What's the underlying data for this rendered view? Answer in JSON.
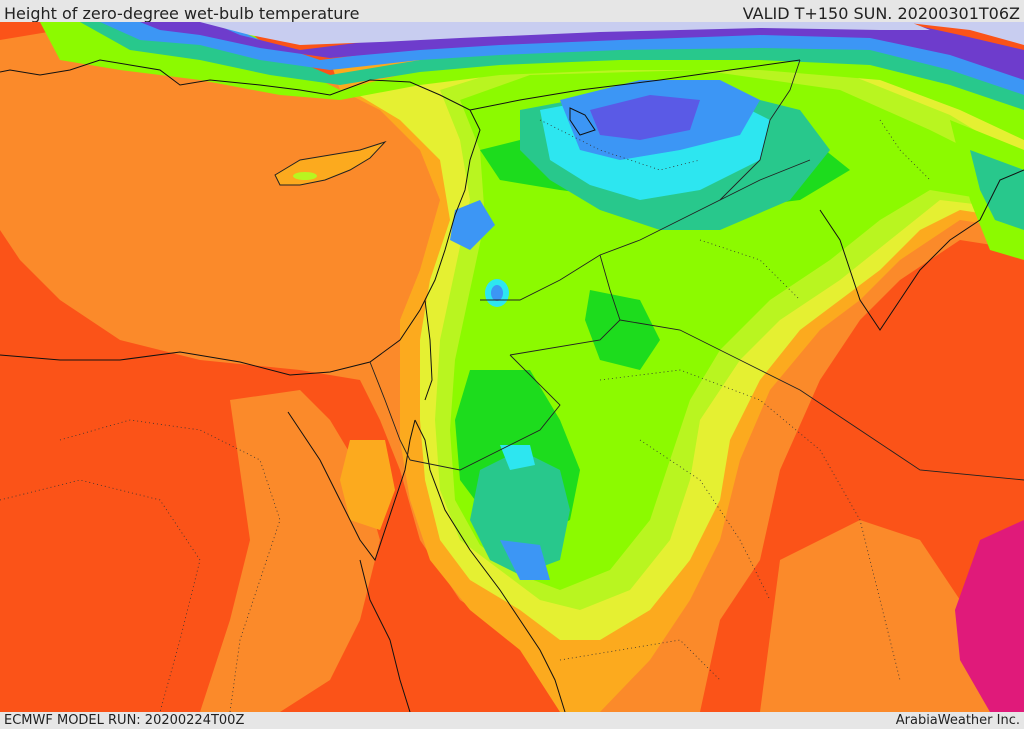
{
  "header": {
    "title": "Height of zero-degree wet-bulb temperature",
    "valid": "VALID T+150 SUN. 20200301T06Z"
  },
  "footer": {
    "model_run": "ECMWF MODEL RUN: 20200224T00Z",
    "brand": "ArabiaWeather Inc."
  },
  "colors": {
    "red_orange": "#fb5318",
    "orange": "#fb8a2a",
    "light_orange": "#fcaa1e",
    "yellow": "#e5f032",
    "yellow_green": "#b9f520",
    "green": "#8cfa00",
    "dark_green": "#1ddc1d",
    "teal": "#28c88c",
    "cyan": "#2de6f0",
    "blue": "#3c96f5",
    "dark_blue": "#5a5ae6",
    "purple": "#6e3ccc",
    "pale_lavender": "#c8cdf0",
    "magenta": "#e01a7a"
  }
}
